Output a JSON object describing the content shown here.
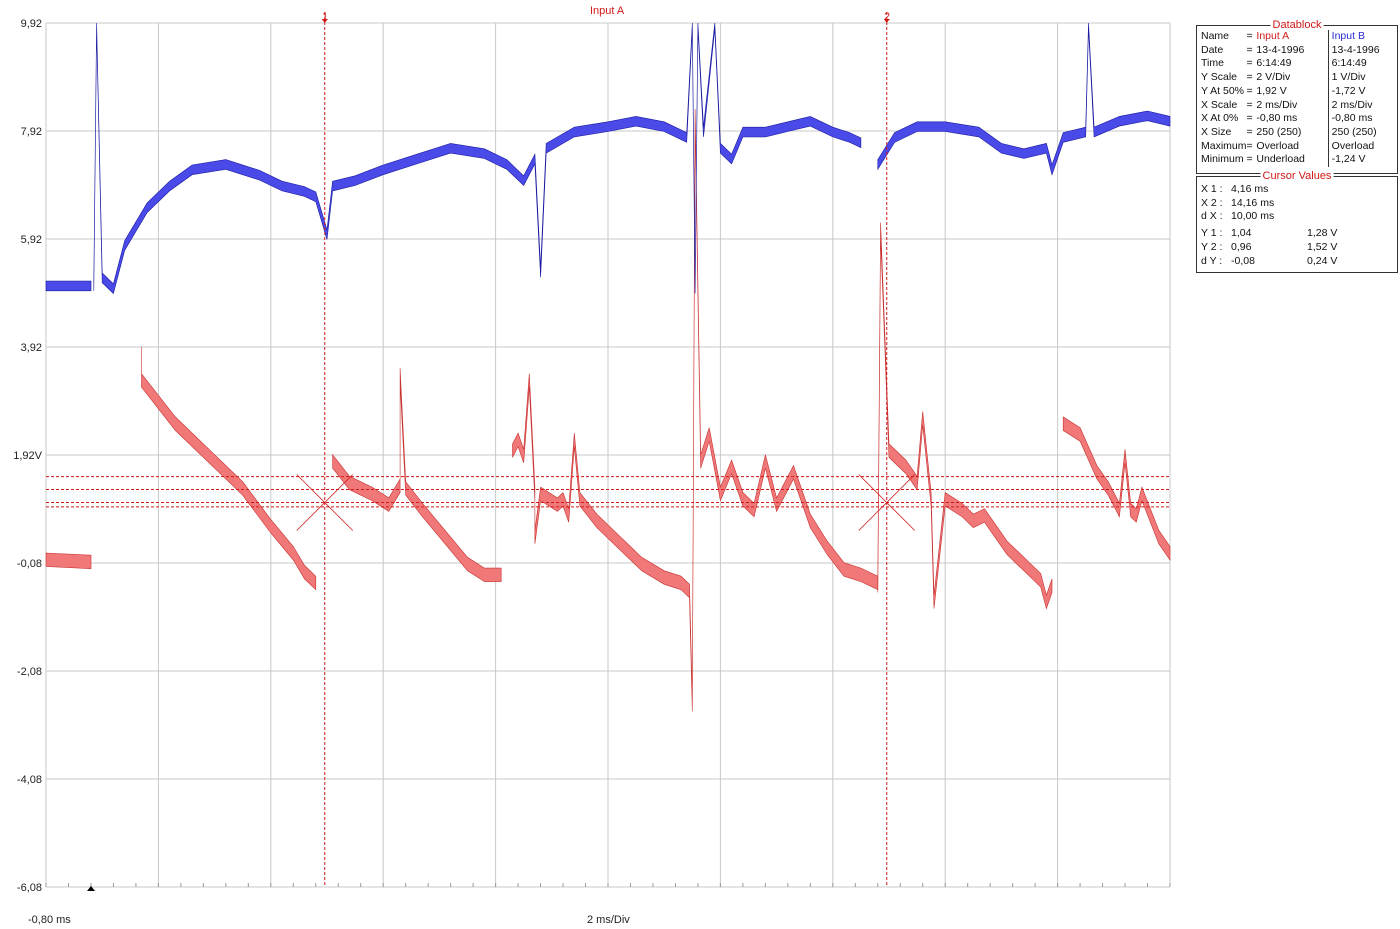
{
  "window": {
    "title_input": "Input A",
    "x_origin_label": "-0,80 ms",
    "x_div_label": "2 ms/Div"
  },
  "colors": {
    "grid": "#c8c8c8",
    "input_a": "#f07878",
    "input_a_edge": "#c83030",
    "input_b": "#4a4ae8",
    "input_b_edge": "#1a1aa0",
    "cursor": "#d01818",
    "title_red": "#d01818",
    "text_blue": "#2a2ad0"
  },
  "cursors": {
    "cursor1_label": "1",
    "cursor2_label": "2"
  },
  "datablock": {
    "title": "Datablock",
    "rows": [
      {
        "name": "Name",
        "eq": "=",
        "a": "Input A",
        "b": "Input B"
      },
      {
        "name": "Date",
        "eq": "=",
        "a": "13-4-1996",
        "b": "13-4-1996"
      },
      {
        "name": "Time",
        "eq": "=",
        "a": "6:14:49",
        "b": "6:14:49"
      },
      {
        "name": "Y Scale",
        "eq": "=",
        "a": "   2    V/Div",
        "b": "   1    V/Div"
      },
      {
        "name": "Y At 50%",
        "eq": "=",
        "a": "  1,92 V",
        "b": "-1,72 V"
      },
      {
        "name": "X Scale",
        "eq": "=",
        "a": "   2    ms/Div",
        "b": "   2    ms/Div"
      },
      {
        "name": "X At 0%",
        "eq": "=",
        "a": " -0,80 ms",
        "b": "-0,80 ms"
      },
      {
        "name": "X Size",
        "eq": "=",
        "a": "250 (250)",
        "b": "250 (250)"
      },
      {
        "name": "Maximum",
        "eq": "=",
        "a": "Overload",
        "b": "Overload"
      },
      {
        "name": "Minimum",
        "eq": "=",
        "a": "Underload",
        "b": "-1,24 V"
      }
    ]
  },
  "cursor_values": {
    "title": "Cursor Values",
    "rows": [
      {
        "name": "X 1 :",
        "a": "   4,16 ms",
        "b": ""
      },
      {
        "name": "X 2 :",
        "a": "  14,16 ms",
        "b": ""
      },
      {
        "name": "d X :",
        "a": "  10,00 ms",
        "b": ""
      },
      {
        "name": "Y 1 :",
        "a": "     1,04",
        "b": "1,28 V"
      },
      {
        "name": "Y 2 :",
        "a": "     0,96",
        "b": "1,52 V"
      },
      {
        "name": "d Y :",
        "a": "  -0,08",
        "b": "0,24 V"
      }
    ]
  },
  "chart_data": {
    "type": "line",
    "title": "Input A",
    "xlabel": "2 ms/Div",
    "x_start_label": "-0,80 ms",
    "xlim": [
      -0.8,
      19.2
    ],
    "ylim": [
      -6.08,
      9.92
    ],
    "y_ticks": [
      9.92,
      7.92,
      5.92,
      3.92,
      1.92,
      -0.08,
      -2.08,
      -4.08,
      -6.08
    ],
    "y_tick_labels": [
      "9,92",
      "7,92",
      "5,92",
      "3,92",
      "1,92V",
      "-0,08",
      "-2,08",
      "-4,08",
      "-6,08"
    ],
    "grid": true,
    "cursor_x": [
      4.16,
      14.16
    ],
    "cursor_y": [
      1.52,
      1.28,
      1.04,
      0.96
    ],
    "series": [
      {
        "name": "Input A",
        "band": 0.25,
        "segments": [
          [
            [
              -0.8,
              -0.02
            ],
            [
              0,
              -0.06
            ],
            [
              0.0,
              -0.06
            ]
          ],
          [
            [
              0.9,
              3.8
            ],
            [
              0.9,
              3.3
            ],
            [
              1.5,
              2.5
            ],
            [
              2.2,
              1.8
            ],
            [
              2.7,
              1.3
            ],
            [
              3.2,
              0.6
            ],
            [
              3.6,
              0.1
            ],
            [
              3.8,
              -0.25
            ],
            [
              4.0,
              -0.45
            ]
          ],
          [
            [
              4.3,
              1.8
            ],
            [
              4.6,
              1.4
            ],
            [
              5.0,
              1.2
            ],
            [
              5.3,
              1.0
            ],
            [
              5.5,
              1.35
            ],
            [
              5.5,
              3.4
            ],
            [
              5.6,
              1.3
            ],
            [
              5.9,
              0.9
            ],
            [
              6.3,
              0.4
            ],
            [
              6.7,
              -0.1
            ],
            [
              7.0,
              -0.3
            ],
            [
              7.3,
              -0.3
            ]
          ],
          [
            [
              7.5,
              2.0
            ],
            [
              7.6,
              2.2
            ],
            [
              7.7,
              1.9
            ],
            [
              7.8,
              3.3
            ],
            [
              7.9,
              1.2
            ],
            [
              7.9,
              0.4
            ],
            [
              8.0,
              1.2
            ],
            [
              8.3,
              1.0
            ],
            [
              8.4,
              1.1
            ],
            [
              8.5,
              0.8
            ],
            [
              8.6,
              2.2
            ],
            [
              8.7,
              1.1
            ],
            [
              9.0,
              0.7
            ],
            [
              9.4,
              0.3
            ],
            [
              9.8,
              -0.1
            ],
            [
              10.2,
              -0.35
            ],
            [
              10.5,
              -0.45
            ],
            [
              10.65,
              -0.6
            ],
            [
              10.7,
              -2.7
            ],
            [
              10.75,
              8.2
            ],
            [
              10.85,
              1.8
            ],
            [
              11.0,
              2.3
            ],
            [
              11.2,
              1.2
            ],
            [
              11.4,
              1.7
            ],
            [
              11.6,
              1.1
            ],
            [
              11.8,
              0.9
            ],
            [
              12.0,
              1.8
            ],
            [
              12.2,
              1.0
            ],
            [
              12.5,
              1.6
            ],
            [
              12.8,
              0.7
            ],
            [
              13.1,
              0.2
            ],
            [
              13.4,
              -0.2
            ],
            [
              13.7,
              -0.3
            ],
            [
              14.0,
              -0.45
            ]
          ],
          [
            [
              14.0,
              -0.5
            ],
            [
              14.05,
              6.1
            ],
            [
              14.2,
              2.0
            ],
            [
              14.5,
              1.7
            ],
            [
              14.7,
              1.4
            ],
            [
              14.8,
              2.6
            ],
            [
              14.95,
              1.1
            ],
            [
              15.0,
              -0.8
            ],
            [
              15.2,
              1.1
            ],
            [
              15.5,
              0.9
            ],
            [
              15.7,
              0.7
            ],
            [
              15.9,
              0.8
            ],
            [
              16.1,
              0.5
            ],
            [
              16.3,
              0.2
            ],
            [
              16.5,
              0.0
            ],
            [
              16.7,
              -0.2
            ],
            [
              16.9,
              -0.4
            ],
            [
              17.0,
              -0.8
            ],
            [
              17.1,
              -0.5
            ]
          ],
          [
            [
              17.3,
              2.5
            ],
            [
              17.6,
              2.3
            ],
            [
              17.9,
              1.6
            ],
            [
              18.1,
              1.3
            ],
            [
              18.3,
              0.9
            ],
            [
              18.4,
              1.9
            ],
            [
              18.5,
              0.9
            ],
            [
              18.6,
              0.8
            ],
            [
              18.7,
              1.2
            ],
            [
              19.0,
              0.4
            ],
            [
              19.2,
              0.1
            ]
          ]
        ]
      },
      {
        "name": "Input B",
        "band": 0.18,
        "segments": [
          [
            [
              -0.8,
              5.05
            ],
            [
              0,
              5.05
            ],
            [
              0.0,
              5.05
            ]
          ],
          [
            [
              0.05,
              5.05
            ],
            [
              0.1,
              9.9
            ],
            [
              0.2,
              5.2
            ],
            [
              0.4,
              5.0
            ],
            [
              0.6,
              5.8
            ],
            [
              1.0,
              6.5
            ],
            [
              1.4,
              6.9
            ],
            [
              1.8,
              7.2
            ],
            [
              2.4,
              7.3
            ],
            [
              3.0,
              7.1
            ],
            [
              3.4,
              6.9
            ],
            [
              3.8,
              6.8
            ],
            [
              4.0,
              6.7
            ],
            [
              4.2,
              6.0
            ],
            [
              4.3,
              6.9
            ],
            [
              4.7,
              7.0
            ],
            [
              5.2,
              7.2
            ],
            [
              5.8,
              7.4
            ],
            [
              6.4,
              7.6
            ],
            [
              7.0,
              7.5
            ],
            [
              7.4,
              7.3
            ],
            [
              7.7,
              7.0
            ],
            [
              7.9,
              7.4
            ],
            [
              8.0,
              5.3
            ],
            [
              8.1,
              7.6
            ],
            [
              8.6,
              7.9
            ],
            [
              9.2,
              8.0
            ],
            [
              9.7,
              8.1
            ],
            [
              10.2,
              8.0
            ],
            [
              10.6,
              7.8
            ],
            [
              10.7,
              9.9
            ],
            [
              10.75,
              5.0
            ],
            [
              10.8,
              9.9
            ],
            [
              10.9,
              7.9
            ],
            [
              11.1,
              9.9
            ],
            [
              11.2,
              7.6
            ],
            [
              11.4,
              7.4
            ],
            [
              11.6,
              7.9
            ],
            [
              12.0,
              7.9
            ],
            [
              12.4,
              8.0
            ],
            [
              12.8,
              8.1
            ],
            [
              13.2,
              7.9
            ],
            [
              13.5,
              7.8
            ],
            [
              13.7,
              7.7
            ]
          ],
          [
            [
              14.0,
              7.3
            ],
            [
              14.3,
              7.8
            ],
            [
              14.7,
              8.0
            ],
            [
              15.2,
              8.0
            ],
            [
              15.8,
              7.9
            ],
            [
              16.2,
              7.6
            ],
            [
              16.6,
              7.5
            ],
            [
              17.0,
              7.6
            ],
            [
              17.1,
              7.2
            ],
            [
              17.3,
              7.8
            ],
            [
              17.7,
              7.9
            ],
            [
              17.75,
              9.9
            ],
            [
              17.85,
              7.9
            ],
            [
              18.3,
              8.1
            ],
            [
              18.8,
              8.2
            ],
            [
              19.2,
              8.1
            ]
          ]
        ]
      }
    ]
  }
}
